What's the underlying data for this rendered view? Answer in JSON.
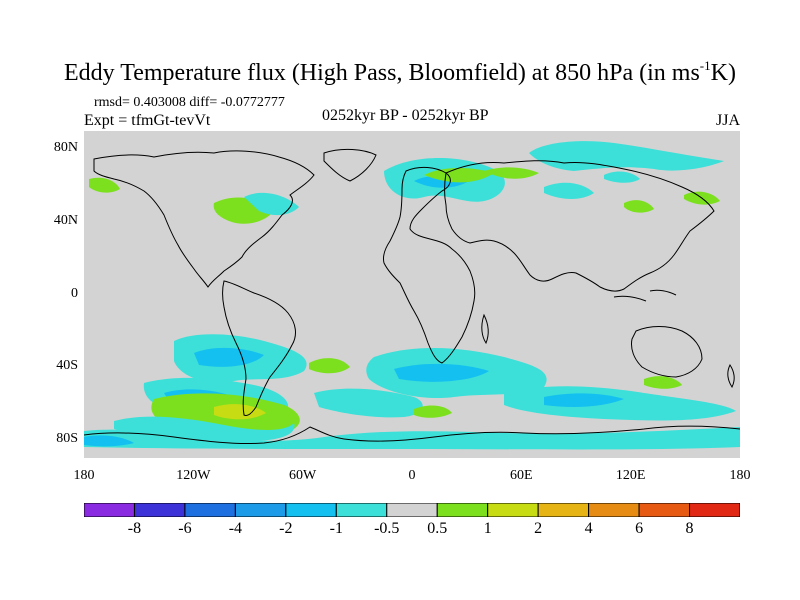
{
  "title": {
    "main": "Eddy Temperature flux (High Pass, Bloomfield) at 850 hPa (in ms",
    "superscript": "-1",
    "suffix": "K)"
  },
  "stats_line": "rmsd= 0.403008 diff= -0.0772777",
  "experiment": "Expt = tfmGt-tevVt",
  "period": "0252kyr BP - 0252kyr BP",
  "season": "JJA",
  "axes": {
    "lat_ticks": [
      {
        "label": "80N",
        "lat": 80
      },
      {
        "label": "40N",
        "lat": 40
      },
      {
        "label": "0",
        "lat": 0
      },
      {
        "label": "40S",
        "lat": -40
      },
      {
        "label": "80S",
        "lat": -80
      }
    ],
    "lon_ticks": [
      {
        "label": "180",
        "lon": -180
      },
      {
        "label": "120W",
        "lon": -120
      },
      {
        "label": "60W",
        "lon": -60
      },
      {
        "label": "0",
        "lon": 0
      },
      {
        "label": "60E",
        "lon": 60
      },
      {
        "label": "120E",
        "lon": 120
      },
      {
        "label": "180",
        "lon": 180
      }
    ],
    "lon_range": [
      -180,
      180
    ],
    "lat_range": [
      -90,
      90
    ]
  },
  "colorbar": {
    "colors": [
      "#8a2be2",
      "#3c32d8",
      "#1e6fe0",
      "#1e9be8",
      "#14c0f0",
      "#3ce0d8",
      "#d3d3d3",
      "#7ce01e",
      "#c8dc14",
      "#e6b414",
      "#e68c14",
      "#e65a14",
      "#e02814"
    ],
    "labels": [
      "-8",
      "-6",
      "-4",
      "-2",
      "-1",
      "-0.5",
      "0.5",
      "1",
      "2",
      "4",
      "6",
      "8"
    ],
    "background_color": "#d3d3d3"
  }
}
